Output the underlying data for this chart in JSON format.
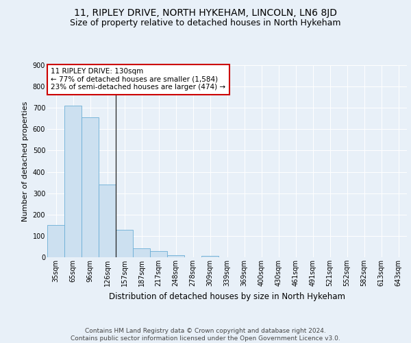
{
  "title": "11, RIPLEY DRIVE, NORTH HYKEHAM, LINCOLN, LN6 8JD",
  "subtitle": "Size of property relative to detached houses in North Hykeham",
  "xlabel": "Distribution of detached houses by size in North Hykeham",
  "ylabel": "Number of detached properties",
  "categories": [
    "35sqm",
    "65sqm",
    "96sqm",
    "126sqm",
    "157sqm",
    "187sqm",
    "217sqm",
    "248sqm",
    "278sqm",
    "309sqm",
    "339sqm",
    "369sqm",
    "400sqm",
    "430sqm",
    "461sqm",
    "491sqm",
    "521sqm",
    "552sqm",
    "582sqm",
    "613sqm",
    "643sqm"
  ],
  "values": [
    150,
    710,
    655,
    340,
    128,
    42,
    28,
    10,
    0,
    8,
    0,
    0,
    0,
    0,
    0,
    0,
    0,
    0,
    0,
    0,
    0
  ],
  "bar_color": "#cce0f0",
  "bar_edge_color": "#6aaed6",
  "fig_background_color": "#e8f0f8",
  "axes_background_color": "#e8f0f8",
  "annotation_box_text": "11 RIPLEY DRIVE: 130sqm\n← 77% of detached houses are smaller (1,584)\n23% of semi-detached houses are larger (474) →",
  "annotation_box_facecolor": "#ffffff",
  "annotation_box_edgecolor": "#cc0000",
  "property_bar_index": 3,
  "vline_x": 3.5,
  "ylim": [
    0,
    900
  ],
  "yticks": [
    0,
    100,
    200,
    300,
    400,
    500,
    600,
    700,
    800,
    900
  ],
  "footer_text": "Contains HM Land Registry data © Crown copyright and database right 2024.\nContains public sector information licensed under the Open Government Licence v3.0.",
  "title_fontsize": 10,
  "subtitle_fontsize": 9,
  "xlabel_fontsize": 8.5,
  "ylabel_fontsize": 8,
  "tick_fontsize": 7,
  "annotation_fontsize": 7.5,
  "footer_fontsize": 6.5
}
